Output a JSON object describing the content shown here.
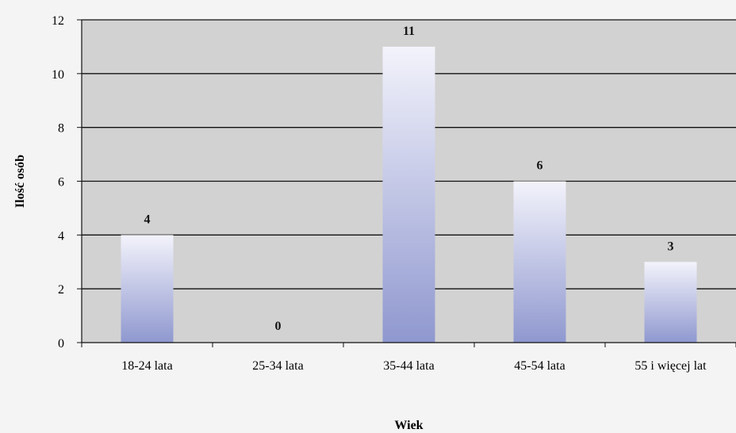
{
  "chart_data": {
    "type": "bar",
    "categories": [
      "18-24 lata",
      "25-34 lata",
      "35-44 lata",
      "45-54 lata",
      "55 i więcej lat"
    ],
    "values": [
      4,
      0,
      11,
      6,
      3
    ],
    "data_labels": [
      "4",
      "0",
      "11",
      "6",
      "3"
    ],
    "title": "",
    "xlabel": "Wiek",
    "ylabel": "Ilość osób",
    "ylim": [
      0,
      12
    ],
    "yticks": [
      0,
      2,
      4,
      6,
      8,
      10,
      12
    ],
    "grid": true,
    "colors": {
      "plot_bg": "#d2d2d2",
      "bar_top": "#f3f3fb",
      "bar_bottom": "#8f98cf",
      "grid": "#111111"
    }
  }
}
